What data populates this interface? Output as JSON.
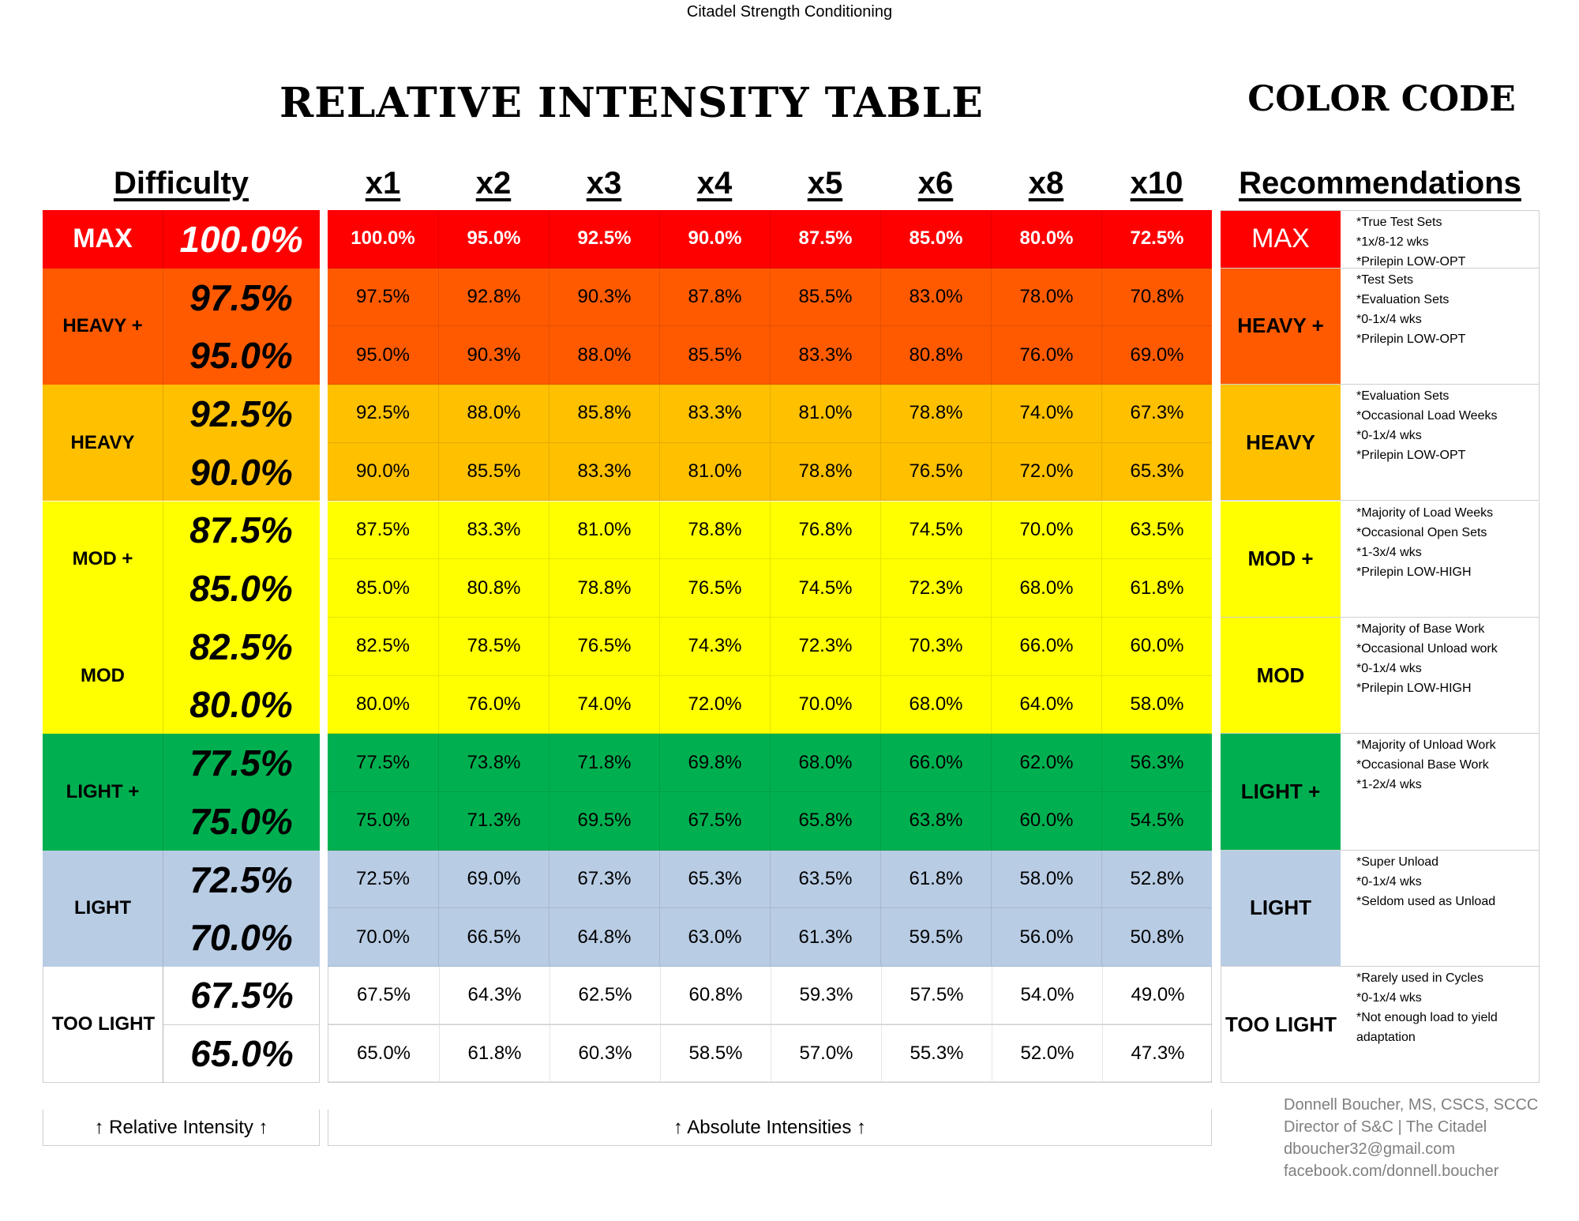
{
  "header": {
    "org": "Citadel Strength Conditioning",
    "title": "RELATIVE INTENSITY TABLE",
    "color_code_title": "COLOR CODE",
    "difficulty_header": "Difficulty",
    "rep_headers": [
      "x1",
      "x2",
      "x3",
      "x4",
      "x5",
      "x6",
      "x8",
      "x10"
    ],
    "recommendations_header": "Recommendations"
  },
  "colors": {
    "max": "#ff0000",
    "heavy_plus": "#ff5a00",
    "heavy": "#ffc000",
    "mod_plus": "#ffff00",
    "mod": "#ffff00",
    "light_plus": "#00b050",
    "light": "#b8cce4",
    "too_light": "#ffffff"
  },
  "levels": [
    {
      "label": "MAX",
      "color": "#ff0000",
      "text_color": "#ffffff",
      "rows": [
        {
          "relative": "100.0%",
          "values": [
            "100.0%",
            "95.0%",
            "92.5%",
            "90.0%",
            "87.5%",
            "85.0%",
            "80.0%",
            "72.5%"
          ]
        }
      ],
      "notes": [
        "*True Test Sets",
        "*1x/8-12 wks",
        "*Prilepin LOW-OPT"
      ]
    },
    {
      "label": "HEAVY +",
      "color": "#ff5a00",
      "text_color": "#000000",
      "rows": [
        {
          "relative": "97.5%",
          "values": [
            "97.5%",
            "92.8%",
            "90.3%",
            "87.8%",
            "85.5%",
            "83.0%",
            "78.0%",
            "70.8%"
          ]
        },
        {
          "relative": "95.0%",
          "values": [
            "95.0%",
            "90.3%",
            "88.0%",
            "85.5%",
            "83.3%",
            "80.8%",
            "76.0%",
            "69.0%"
          ]
        }
      ],
      "notes": [
        "*Test Sets",
        "*Evaluation Sets",
        "*0-1x/4 wks",
        "*Prilepin LOW-OPT"
      ]
    },
    {
      "label": "HEAVY",
      "color": "#ffc000",
      "text_color": "#000000",
      "rows": [
        {
          "relative": "92.5%",
          "values": [
            "92.5%",
            "88.0%",
            "85.8%",
            "83.3%",
            "81.0%",
            "78.8%",
            "74.0%",
            "67.3%"
          ]
        },
        {
          "relative": "90.0%",
          "values": [
            "90.0%",
            "85.5%",
            "83.3%",
            "81.0%",
            "78.8%",
            "76.5%",
            "72.0%",
            "65.3%"
          ]
        }
      ],
      "notes": [
        "*Evaluation Sets",
        "*Occasional Load Weeks",
        "*0-1x/4 wks",
        "*Prilepin LOW-OPT"
      ]
    },
    {
      "label": "MOD +",
      "color": "#ffff00",
      "text_color": "#000000",
      "rows": [
        {
          "relative": "87.5%",
          "values": [
            "87.5%",
            "83.3%",
            "81.0%",
            "78.8%",
            "76.8%",
            "74.5%",
            "70.0%",
            "63.5%"
          ]
        },
        {
          "relative": "85.0%",
          "values": [
            "85.0%",
            "80.8%",
            "78.8%",
            "76.5%",
            "74.5%",
            "72.3%",
            "68.0%",
            "61.8%"
          ]
        }
      ],
      "notes": [
        "*Majority of Load Weeks",
        "*Occasional Open Sets",
        "*1-3x/4 wks",
        "*Prilepin LOW-HIGH"
      ]
    },
    {
      "label": "MOD",
      "color": "#ffff00",
      "text_color": "#000000",
      "rows": [
        {
          "relative": "82.5%",
          "values": [
            "82.5%",
            "78.5%",
            "76.5%",
            "74.3%",
            "72.3%",
            "70.3%",
            "66.0%",
            "60.0%"
          ]
        },
        {
          "relative": "80.0%",
          "values": [
            "80.0%",
            "76.0%",
            "74.0%",
            "72.0%",
            "70.0%",
            "68.0%",
            "64.0%",
            "58.0%"
          ]
        }
      ],
      "notes": [
        "*Majority of Base Work",
        "*Occasional Unload work",
        "*0-1x/4 wks",
        "*Prilepin LOW-HIGH"
      ]
    },
    {
      "label": "LIGHT +",
      "color": "#00b050",
      "text_color": "#000000",
      "rows": [
        {
          "relative": "77.5%",
          "values": [
            "77.5%",
            "73.8%",
            "71.8%",
            "69.8%",
            "68.0%",
            "66.0%",
            "62.0%",
            "56.3%"
          ]
        },
        {
          "relative": "75.0%",
          "values": [
            "75.0%",
            "71.3%",
            "69.5%",
            "67.5%",
            "65.8%",
            "63.8%",
            "60.0%",
            "54.5%"
          ]
        }
      ],
      "notes": [
        "*Majority of Unload Work",
        "*Occasional Base Work",
        "*1-2x/4 wks"
      ]
    },
    {
      "label": "LIGHT",
      "color": "#b8cce4",
      "text_color": "#000000",
      "rows": [
        {
          "relative": "72.5%",
          "values": [
            "72.5%",
            "69.0%",
            "67.3%",
            "65.3%",
            "63.5%",
            "61.8%",
            "58.0%",
            "52.8%"
          ]
        },
        {
          "relative": "70.0%",
          "values": [
            "70.0%",
            "66.5%",
            "64.8%",
            "63.0%",
            "61.3%",
            "59.5%",
            "56.0%",
            "50.8%"
          ]
        }
      ],
      "notes": [
        "*Super Unload",
        "*0-1x/4 wks",
        "*Seldom used as Unload"
      ]
    },
    {
      "label": "TOO LIGHT",
      "color": "#ffffff",
      "text_color": "#000000",
      "rows": [
        {
          "relative": "67.5%",
          "values": [
            "67.5%",
            "64.3%",
            "62.5%",
            "60.8%",
            "59.3%",
            "57.5%",
            "54.0%",
            "49.0%"
          ]
        },
        {
          "relative": "65.0%",
          "values": [
            "65.0%",
            "61.8%",
            "60.3%",
            "58.5%",
            "57.0%",
            "55.3%",
            "52.0%",
            "47.3%"
          ]
        }
      ],
      "notes": [
        "*Rarely used in Cycles",
        "*0-1x/4 wks",
        "*Not enough load to yield",
        "adaptation"
      ]
    }
  ],
  "footer": {
    "relative_caption": "↑ Relative Intensity ↑",
    "absolute_caption": "↑ Absolute Intensities ↑",
    "contact": [
      "Donnell Boucher, MS, CSCS, SCCC",
      "Director of S&C | The Citadel",
      "dboucher32@gmail.com",
      "facebook.com/donnell.boucher"
    ]
  }
}
